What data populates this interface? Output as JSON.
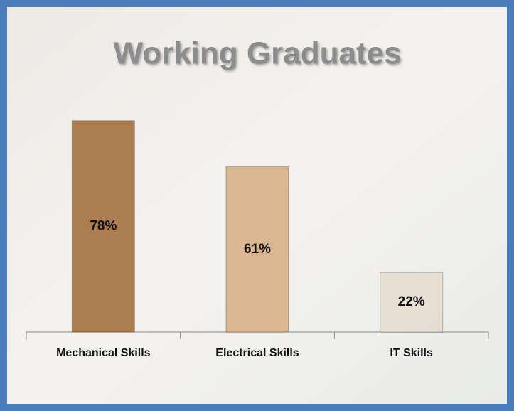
{
  "chart_data": {
    "type": "bar",
    "title": "Working Graduates",
    "categories": [
      "Mechanical Skills",
      "Electrical Skills",
      "IT Skills"
    ],
    "values": [
      78,
      61,
      22
    ],
    "value_labels": [
      "78%",
      "61%",
      "22%"
    ],
    "colors": [
      "#a8764a",
      "#d8b28c",
      "#e6ddd3"
    ]
  }
}
